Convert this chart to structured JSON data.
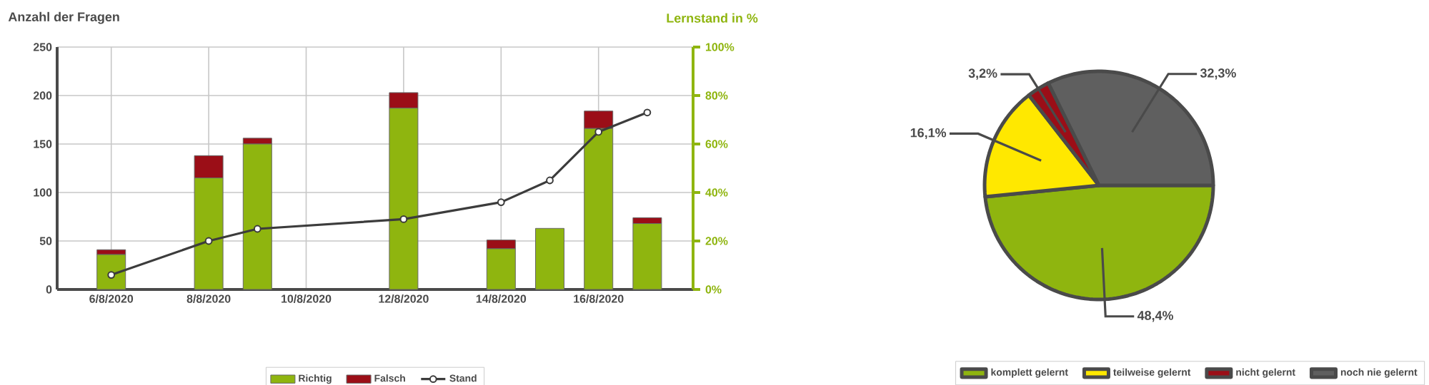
{
  "chart_data": [
    {
      "type": "bar",
      "stacked": true,
      "ylabel": "Anzahl der Fragen",
      "y2label": "Lernstand in %",
      "categories": [
        "6/8/2020",
        null,
        "8/8/2020",
        null,
        "10/8/2020",
        null,
        "12/8/2020",
        null,
        "14/8/2020",
        null,
        "16/8/2020",
        null
      ],
      "series": [
        {
          "name": "Richtig",
          "color": "#8fb50f",
          "values": [
            36,
            null,
            115,
            150,
            null,
            null,
            187,
            null,
            42,
            63,
            166,
            68
          ]
        },
        {
          "name": "Falsch",
          "color": "#9b0e17",
          "values": [
            5,
            null,
            23,
            6,
            null,
            null,
            16,
            null,
            9,
            null,
            18,
            6
          ]
        },
        {
          "name": "Stand",
          "type": "line",
          "axis": "y2",
          "color": "#3c3c3c",
          "marker": "circle",
          "values": [
            6,
            null,
            20,
            25,
            null,
            null,
            29,
            null,
            36,
            45,
            65,
            73
          ]
        }
      ],
      "ylim": [
        0,
        250
      ],
      "yticks": [
        0,
        50,
        100,
        150,
        200,
        250
      ],
      "y2lim": [
        0,
        100
      ],
      "y2ticks": [
        {
          "value": 0,
          "label": "0%"
        },
        {
          "value": 20,
          "label": "20%"
        },
        {
          "value": 40,
          "label": "40%"
        },
        {
          "value": 60,
          "label": "60%"
        },
        {
          "value": 80,
          "label": "80%"
        },
        {
          "value": 100,
          "label": "100%"
        }
      ],
      "grid": true,
      "legend": "bottom"
    },
    {
      "type": "pie",
      "categories": [
        "komplett gelernt",
        "teilweise gelernt",
        "nicht gelernt",
        "noch nie gelernt"
      ],
      "values": [
        48.4,
        16.1,
        3.2,
        32.3
      ],
      "colors": [
        "#8fb50f",
        "#ffe800",
        "#9b0e17",
        "#5f5f5f"
      ],
      "value_labels": [
        "48,4%",
        "16,1%",
        "3,2%",
        "32,3%"
      ],
      "legend": "bottom"
    }
  ]
}
